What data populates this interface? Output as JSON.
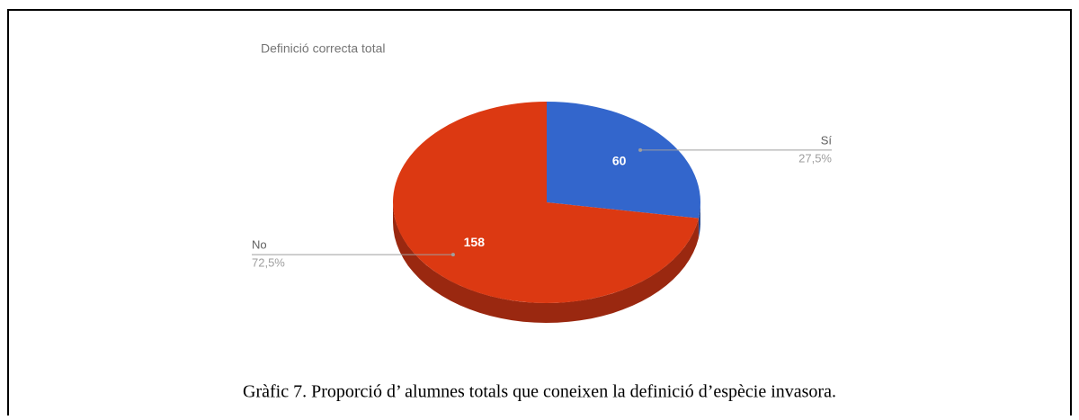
{
  "chart_data": {
    "type": "pie",
    "title": "Definició correcta total",
    "categories": [
      "Sí",
      "No"
    ],
    "values": [
      60,
      158
    ],
    "percent_labels": [
      "27,5%",
      "72,5%"
    ],
    "colors": [
      "#3366cc",
      "#dc3912"
    ],
    "side_colors": [
      "#24478f",
      "#9a2810"
    ]
  },
  "caption": "Gràfic 7. Proporció d’ alumnes totals que coneixen la definició d’espècie invasora."
}
